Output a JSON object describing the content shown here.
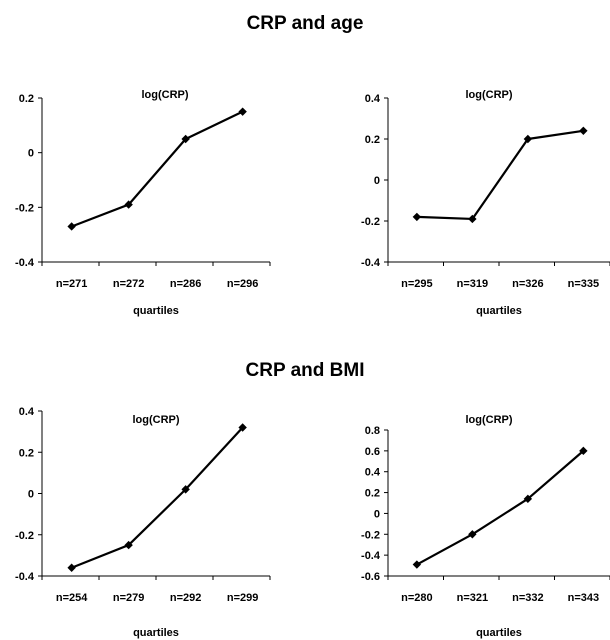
{
  "sections": [
    {
      "title": "CRP and age"
    },
    {
      "title": "CRP and BMI"
    }
  ],
  "chart_data": [
    {
      "type": "line",
      "title": "log(CRP)",
      "xlabel": "quartiles",
      "ylabel": "",
      "categories": [
        "n=271",
        "n=272",
        "n=286",
        "n=296"
      ],
      "values": [
        -0.27,
        -0.19,
        0.05,
        0.15
      ],
      "ylim": [
        -0.4,
        0.2
      ],
      "yticks": [
        0.2,
        0,
        -0.2,
        -0.4
      ],
      "ytick_labels": [
        "0.2",
        "0",
        "-0.2",
        "-0.4"
      ],
      "grid": false,
      "marker": "diamond",
      "line_color": "#000000"
    },
    {
      "type": "line",
      "title": "log(CRP)",
      "xlabel": "quartiles",
      "ylabel": "",
      "categories": [
        "n=295",
        "n=319",
        "n=326",
        "n=335"
      ],
      "values": [
        -0.18,
        -0.19,
        0.2,
        0.24
      ],
      "ylim": [
        -0.4,
        0.4
      ],
      "yticks": [
        0.4,
        0.2,
        0,
        -0.2,
        -0.4
      ],
      "ytick_labels": [
        "0.4",
        "0.2",
        "0",
        "-0.2",
        "-0.4"
      ],
      "grid": false,
      "marker": "diamond",
      "line_color": "#000000"
    },
    {
      "type": "line",
      "title": "log(CRP)",
      "xlabel": "quartiles",
      "ylabel": "",
      "categories": [
        "n=254",
        "n=279",
        "n=292",
        "n=299"
      ],
      "values": [
        -0.36,
        -0.25,
        0.02,
        0.32
      ],
      "ylim": [
        -0.4,
        0.4
      ],
      "yticks": [
        0.4,
        0.2,
        0,
        -0.2,
        -0.4
      ],
      "ytick_labels": [
        "0.4",
        "0.2",
        "0",
        "-0.2",
        "-0.4"
      ],
      "grid": false,
      "marker": "diamond",
      "line_color": "#000000"
    },
    {
      "type": "line",
      "title": "log(CRP)",
      "xlabel": "quartiles",
      "ylabel": "",
      "categories": [
        "n=280",
        "n=321",
        "n=332",
        "n=343"
      ],
      "values": [
        -0.49,
        -0.2,
        0.14,
        0.6
      ],
      "ylim": [
        -0.6,
        0.8
      ],
      "yticks": [
        0.8,
        0.6,
        0.4,
        0.2,
        0,
        -0.2,
        -0.4,
        -0.6
      ],
      "ytick_labels": [
        "0.8",
        "0.6",
        "0.4",
        "0.2",
        "0",
        "-0.2",
        "-0.4",
        "-0.6"
      ],
      "grid": false,
      "marker": "diamond",
      "line_color": "#000000"
    }
  ]
}
